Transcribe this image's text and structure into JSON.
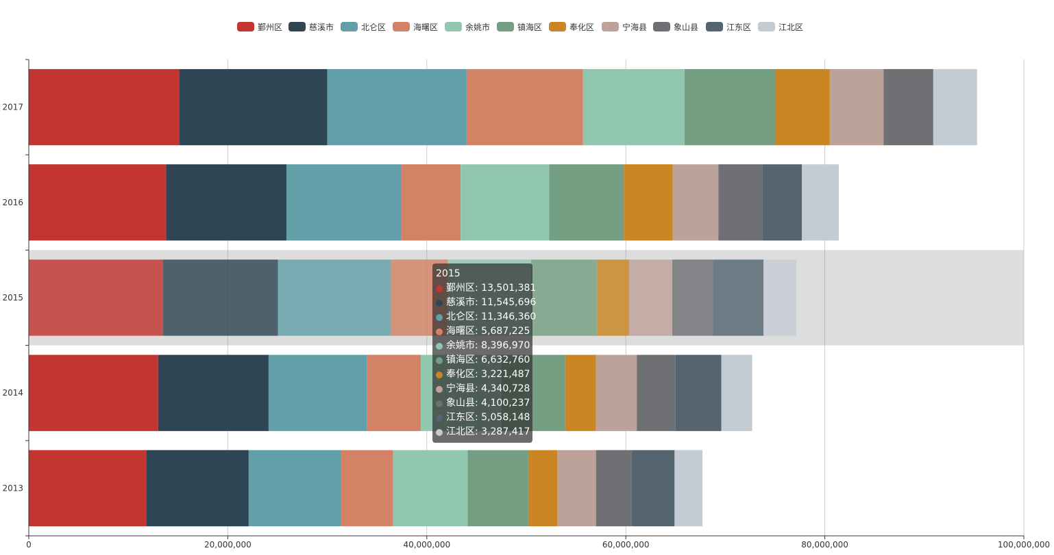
{
  "chart_data": {
    "type": "bar",
    "orientation": "horizontal",
    "stacked": true,
    "categories": [
      "2013",
      "2014",
      "2015",
      "2016",
      "2017"
    ],
    "xlim": [
      0,
      100000000
    ],
    "x_ticks": [
      0,
      20000000,
      40000000,
      60000000,
      80000000,
      100000000
    ],
    "x_tick_labels": [
      "0",
      "20,000,000",
      "40,000,000",
      "60,000,000",
      "80,000,000",
      "100,000,000"
    ],
    "grid": true,
    "legend_position": "top-center",
    "highlighted_category": "2015",
    "series": [
      {
        "name": "鄞州区",
        "color": "#c23531",
        "values": [
          11800000,
          13000000,
          13501381,
          13800000,
          15100000
        ]
      },
      {
        "name": "慈溪市",
        "color": "#2f4554",
        "values": [
          10300000,
          11100000,
          11545696,
          12100000,
          14900000
        ]
      },
      {
        "name": "北仑区",
        "color": "#61a0a8",
        "values": [
          9300000,
          9900000,
          11346360,
          11500000,
          14000000
        ]
      },
      {
        "name": "海曙区",
        "color": "#d48265",
        "values": [
          5200000,
          5400000,
          5687225,
          6000000,
          11700000
        ]
      },
      {
        "name": "余姚市",
        "color": "#91c7ae",
        "values": [
          7500000,
          8100000,
          8396970,
          8900000,
          10200000
        ]
      },
      {
        "name": "镇海区",
        "color": "#749f83",
        "values": [
          6100000,
          6400000,
          6632760,
          7500000,
          9100000
        ]
      },
      {
        "name": "奉化区",
        "color": "#ca8622",
        "values": [
          2900000,
          3100000,
          3221487,
          4900000,
          5500000
        ]
      },
      {
        "name": "宁海县",
        "color": "#bda29a",
        "values": [
          3900000,
          4100000,
          4340728,
          4600000,
          5400000
        ]
      },
      {
        "name": "象山县",
        "color": "#6e7074",
        "values": [
          3600000,
          3900000,
          4100237,
          4400000,
          5000000
        ]
      },
      {
        "name": "江东区",
        "color": "#546570",
        "values": [
          4300000,
          4600000,
          5058148,
          4000000,
          0
        ]
      },
      {
        "name": "江北区",
        "color": "#c4ccd3",
        "values": [
          2800000,
          3100000,
          3287417,
          3700000,
          4400000
        ]
      }
    ],
    "tooltip": {
      "title": "2015",
      "rows": [
        "鄞州区: 13,501,381",
        "慈溪市: 11,545,696",
        "北仑区: 11,346,360",
        "海曙区: 5,687,225",
        "余姚市: 8,396,970",
        "镇海区: 6,632,760",
        "奉化区: 3,221,487",
        "宁海县: 4,340,728",
        "象山县: 4,100,237",
        "江东区: 5,058,148",
        "江北区: 3,287,417"
      ]
    }
  }
}
